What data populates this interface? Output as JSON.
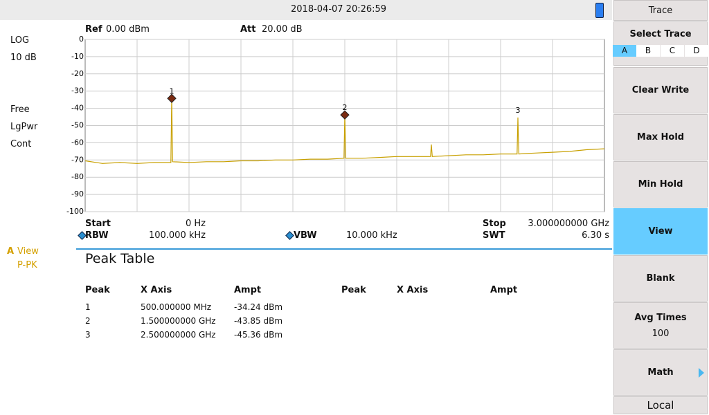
{
  "header": {
    "datetime": "2018-04-07   20:26:59"
  },
  "left_panel": {
    "scale_type": "LOG",
    "scale_div": "10 dB",
    "trigger": "Free",
    "avg_type": "LgPwr",
    "sweep": "Cont",
    "trace_label": "A",
    "trace_state": "View",
    "detector": "P-PK"
  },
  "chart_data": {
    "type": "line",
    "ref_label": "Ref",
    "ref_value": "0.00 dBm",
    "att_label": "Att",
    "att_value": "20.00 dB",
    "xlim": [
      0,
      3000000000
    ],
    "ylim": [
      -100,
      0
    ],
    "yticks": [
      0,
      -10,
      -20,
      -30,
      -40,
      -50,
      -60,
      -70,
      -80,
      -90,
      -100
    ],
    "grid": true,
    "x": [
      0,
      100000000,
      200000000,
      300000000,
      400000000,
      495000000,
      500000000,
      505000000,
      600000000,
      700000000,
      800000000,
      900000000,
      1000000000,
      1100000000,
      1200000000,
      1300000000,
      1400000000,
      1495000000,
      1500000000,
      1505000000,
      1600000000,
      1700000000,
      1800000000,
      1900000000,
      1995000000,
      2000000000,
      2005000000,
      2100000000,
      2200000000,
      2300000000,
      2400000000,
      2495000000,
      2500000000,
      2505000000,
      2600000000,
      2700000000,
      2800000000,
      2900000000,
      3000000000
    ],
    "series": [
      {
        "color": "#c8a000",
        "values": [
          -70.5,
          -72,
          -71.5,
          -72,
          -71.5,
          -71.5,
          -34.24,
          -71,
          -71.5,
          -71,
          -71,
          -70.5,
          -70.5,
          -70,
          -70,
          -69.5,
          -69.5,
          -69,
          -43.85,
          -69,
          -69,
          -68.5,
          -68,
          -68,
          -68,
          -61,
          -68,
          -67.5,
          -67,
          -67,
          -66.5,
          -66.5,
          -45.36,
          -66.5,
          -66,
          -65.5,
          -65,
          -64,
          -63.5
        ]
      }
    ],
    "markers": {
      "labels": [
        "1",
        "2",
        "3"
      ],
      "x": [
        500000000,
        1500000000,
        2500000000
      ],
      "values": [
        -34.24,
        -43.85,
        -45.36
      ],
      "color": "#7a2a10"
    }
  },
  "settings": {
    "start_label": "Start",
    "start_value": "0 Hz",
    "stop_label": "Stop",
    "stop_value": "3.000000000 GHz",
    "rbw_label": "RBW",
    "rbw_value": "100.000 kHz",
    "vbw_label": "VBW",
    "vbw_value": "10.000 kHz",
    "swt_label": "SWT",
    "swt_value": "6.30 s"
  },
  "peak_table": {
    "title": "Peak Table",
    "headers": [
      "Peak",
      "X Axis",
      "Ampt",
      "Peak",
      "X Axis",
      "Ampt"
    ],
    "rows": [
      [
        "1",
        "500.000000 MHz",
        "-34.24 dBm"
      ],
      [
        "2",
        "1.500000000 GHz",
        "-43.85 dBm"
      ],
      [
        "3",
        "2.500000000 GHz",
        "-45.36 dBm"
      ]
    ]
  },
  "menu": {
    "title": "Trace",
    "select_trace": "Select Trace",
    "traces": [
      "A",
      "B",
      "C",
      "D"
    ],
    "buttons": [
      "Clear Write",
      "Max Hold",
      "Min Hold",
      "View",
      "Blank"
    ],
    "avg_times_label": "Avg Times",
    "avg_times_value": "100",
    "math": "Math",
    "local": "Local"
  }
}
